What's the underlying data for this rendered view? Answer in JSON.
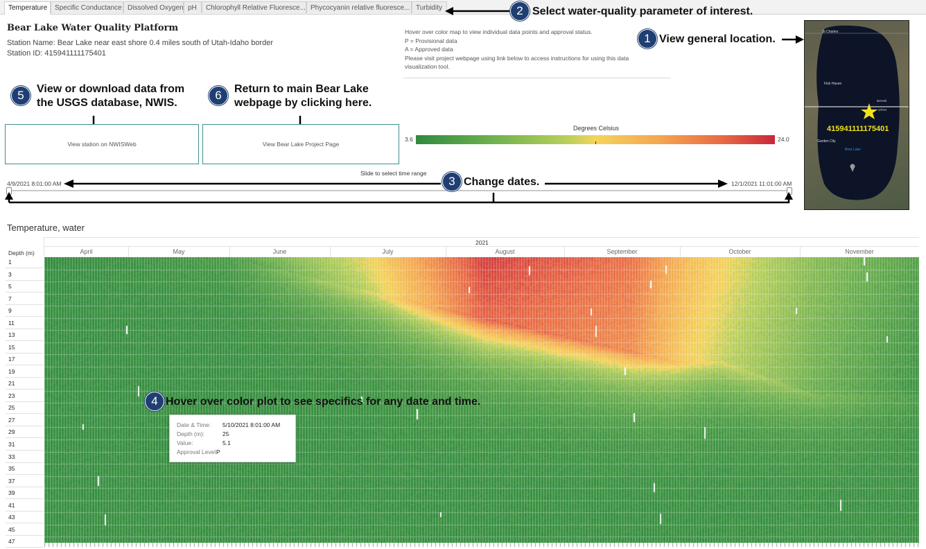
{
  "tabs": [
    {
      "label": "Temperature"
    },
    {
      "label": "Specific Conductance"
    },
    {
      "label": "Dissolved Oxygen"
    },
    {
      "label": "pH"
    },
    {
      "label": "Chlorophyll Relative Fluoresce..."
    },
    {
      "label": "Phycocyanin relative fluoresce..."
    },
    {
      "label": "Turbidity"
    }
  ],
  "header": {
    "title": "Bear Lake Water Quality Platform",
    "station_name": "Station Name: Bear Lake near east shore 0.4 miles south of Utah-Idaho border",
    "station_id": "Station ID: 415941111175401"
  },
  "instructions": {
    "l1": "Hover over color map to view individual data points and approval status.",
    "l2": "P = Provisional data",
    "l3": "A = Approved data",
    "l4": "Please visit project webpage using link below to access instructions for using this data",
    "l5": "visualization tool."
  },
  "annotations": {
    "a1": {
      "num": "1",
      "text": "View general location."
    },
    "a2": {
      "num": "2",
      "text": "Select water-quality parameter of interest."
    },
    "a3": {
      "num": "3",
      "text": "Change dates."
    },
    "a4": {
      "num": "4",
      "text": "Hover over color plot to see specifics for any date and time."
    },
    "a5": {
      "num": "5",
      "line1": "View or download data from",
      "line2": "the USGS database, NWIS."
    },
    "a6": {
      "num": "6",
      "line1": "Return to main Bear Lake",
      "line2": "webpage by clicking here."
    }
  },
  "links": {
    "nwis": "View station on NWISWeb",
    "project": "View Bear Lake Project Page"
  },
  "legend": {
    "title": "Degrees Celsius",
    "min": "3.6",
    "max": "24.0"
  },
  "slider": {
    "label": "Slide to select time range",
    "start": "4/9/2021 8:01:00 AM",
    "end": "12/1/2021 11:01:00 AM"
  },
  "map": {
    "station_label": "415941111175401",
    "place_labels": [
      "Fish Haven",
      "Garden City",
      "Bear Lake",
      "IDAHO",
      "UTAH",
      "St Charles"
    ],
    "colors": {
      "lake": "#0d1428",
      "star": "#f2e21c",
      "border": "#d0d0d0"
    }
  },
  "heatmap": {
    "section_title": "Temperature, water",
    "year": "2021",
    "depth_header": "Depth (m)",
    "months": [
      "April",
      "May",
      "June",
      "July",
      "August",
      "September",
      "October",
      "November"
    ],
    "depths": [
      "1",
      "3",
      "5",
      "7",
      "9",
      "11",
      "13",
      "15",
      "17",
      "19",
      "21",
      "23",
      "25",
      "27",
      "29",
      "31",
      "33",
      "35",
      "37",
      "39",
      "41",
      "43",
      "45",
      "47"
    ]
  },
  "tooltip": {
    "rows": [
      {
        "k": "Date & Time:",
        "v": "5/10/2021 8:01:00 AM"
      },
      {
        "k": "Depth (m):",
        "v": "25"
      },
      {
        "k": "Value:",
        "v": "5.1"
      },
      {
        "k": "Approval Level:",
        "v": "P"
      }
    ]
  }
}
